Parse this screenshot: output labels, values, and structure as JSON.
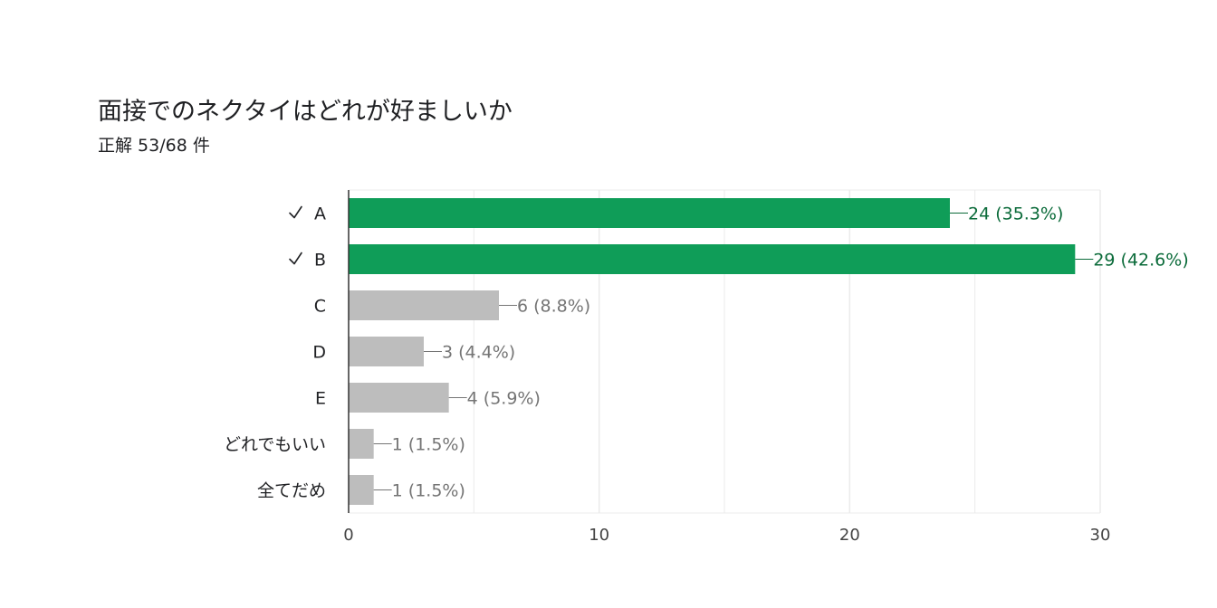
{
  "question": {
    "title": "面接でのネクタイはどれが好ましいか",
    "result": "正解 53/68 件"
  },
  "colors": {
    "correct": "#0f9d58",
    "incorrect": "#bdbdbd",
    "correct_label": "#0b6b3a",
    "incorrect_label": "#757575",
    "grid": "#ebebeb",
    "axis": "#333333"
  },
  "check_icon": "check-icon",
  "chart_data": {
    "type": "bar",
    "orientation": "horizontal",
    "categories": [
      "A",
      "B",
      "C",
      "D",
      "E",
      "どれでもいい",
      "全てだめ"
    ],
    "values": [
      24,
      29,
      6,
      3,
      4,
      1,
      1
    ],
    "value_labels": [
      "24 (35.3%)",
      "29 (42.6%)",
      "6 (8.8%)",
      "3 (4.4%)",
      "4 (5.9%)",
      "1 (1.5%)",
      "1 (1.5%)"
    ],
    "correct": [
      true,
      true,
      false,
      false,
      false,
      false,
      false
    ],
    "xlim": [
      0,
      30
    ],
    "xticks": [
      0,
      10,
      20,
      30
    ],
    "grid": true,
    "legend": "none"
  }
}
